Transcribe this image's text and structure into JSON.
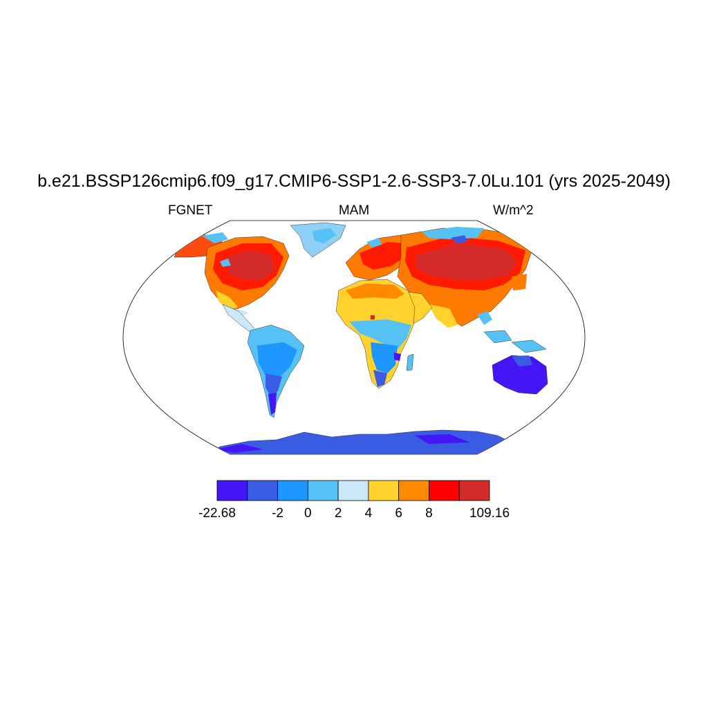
{
  "title": "b.e21.BSSP126cmip6.f09_g17.CMIP6-SSP1-2.6-SSP3-7.0Lu.101 (yrs 2025-2049)",
  "subtitle_left": "FGNET",
  "subtitle_center": "MAM",
  "subtitle_right": "W/m^2",
  "colorbar": {
    "colors": [
      "#4415f5",
      "#3a5ce3",
      "#1e96ff",
      "#55c1f5",
      "#cbe8f8",
      "#ffd22d",
      "#ff8a00",
      "#ff0000",
      "#d42a2a"
    ],
    "tick_labels": [
      "-22.68",
      "-2",
      "0",
      "2",
      "4",
      "6",
      "8",
      "109.16"
    ],
    "min": -22.68,
    "max": 109.16,
    "levels": [
      -4,
      -2,
      0,
      2,
      4,
      6,
      8,
      10
    ]
  }
}
